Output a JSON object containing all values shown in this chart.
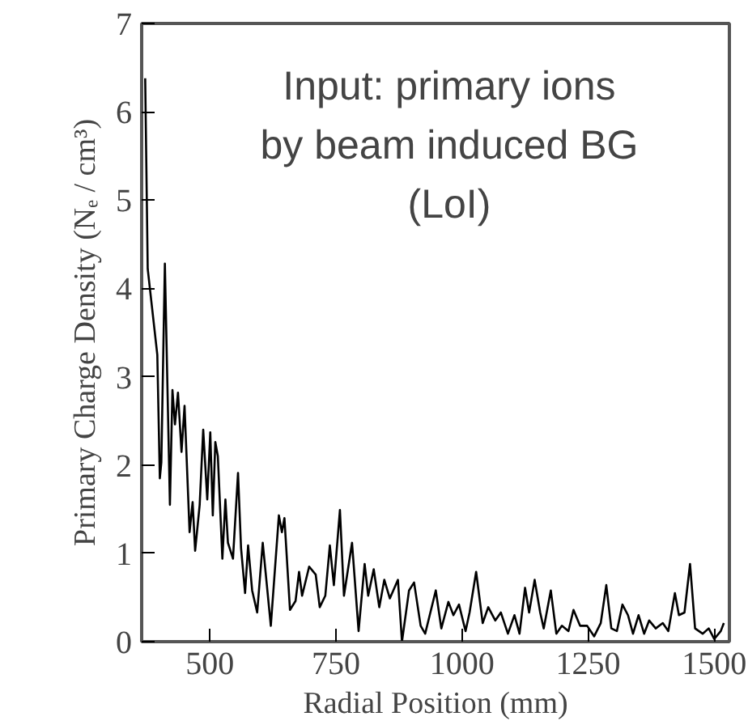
{
  "chart_data": {
    "type": "line",
    "xlabel": "Radial Position (mm)",
    "ylabel": "Primary Charge Density (Nₑ / cm³)",
    "annotations": [
      "Input: primary ions\nby beam induced BG\n(LoI)"
    ],
    "xlim": [
      365,
      1530
    ],
    "xticks": [
      500,
      750,
      1000,
      1250,
      1500
    ],
    "ylim": [
      0,
      7
    ],
    "yticks": [
      0,
      1,
      2,
      3,
      4,
      5,
      6,
      7
    ],
    "grid": false,
    "marker": "none",
    "line_style": "solid",
    "series": [
      {
        "color": "#000000",
        "x": [
          372,
          377,
          396,
          401,
          404,
          411,
          421,
          426,
          431,
          437,
          444,
          450,
          460,
          466,
          471,
          480,
          487,
          495,
          501,
          506,
          511,
          516,
          525,
          531,
          536,
          546,
          556,
          562,
          570,
          576,
          584,
          594,
          605,
          621,
          637,
          643,
          648,
          659,
          670,
          677,
          683,
          697,
          710,
          718,
          729,
          738,
          746,
          758,
          766,
          782,
          795,
          807,
          814,
          825,
          836,
          846,
          857,
          873,
          881,
          895,
          905,
          918,
          927,
          948,
          959,
          973,
          983,
          994,
          1007,
          1015,
          1028,
          1041,
          1052,
          1066,
          1077,
          1091,
          1104,
          1114,
          1125,
          1133,
          1144,
          1155,
          1162,
          1176,
          1187,
          1198,
          1211,
          1221,
          1234,
          1248,
          1262,
          1275,
          1286,
          1296,
          1307,
          1318,
          1329,
          1339,
          1350,
          1361,
          1371,
          1384,
          1398,
          1409,
          1422,
          1430,
          1441,
          1452,
          1462,
          1477,
          1489,
          1500,
          1513,
          1519
        ],
        "values": [
          6.38,
          4.22,
          3.25,
          1.85,
          2.03,
          4.28,
          1.55,
          2.85,
          2.46,
          2.82,
          2.15,
          2.67,
          1.24,
          1.58,
          1.03,
          1.55,
          2.4,
          1.61,
          2.37,
          1.43,
          2.26,
          2.1,
          0.94,
          1.61,
          1.12,
          0.94,
          1.91,
          1.06,
          0.55,
          1.09,
          0.58,
          0.33,
          1.12,
          0.18,
          1.43,
          1.24,
          1.4,
          0.36,
          0.46,
          0.79,
          0.52,
          0.85,
          0.76,
          0.39,
          0.52,
          1.09,
          0.64,
          1.49,
          0.52,
          1.12,
          0.12,
          0.88,
          0.52,
          0.82,
          0.39,
          0.7,
          0.49,
          0.7,
          0.0,
          0.58,
          0.67,
          0.18,
          0.09,
          0.58,
          0.15,
          0.45,
          0.3,
          0.42,
          0.12,
          0.33,
          0.79,
          0.21,
          0.39,
          0.24,
          0.33,
          0.09,
          0.3,
          0.09,
          0.61,
          0.33,
          0.7,
          0.33,
          0.15,
          0.58,
          0.09,
          0.18,
          0.12,
          0.36,
          0.18,
          0.18,
          0.06,
          0.21,
          0.64,
          0.15,
          0.12,
          0.42,
          0.3,
          0.09,
          0.3,
          0.09,
          0.24,
          0.15,
          0.21,
          0.12,
          0.55,
          0.3,
          0.33,
          0.88,
          0.15,
          0.09,
          0.15,
          0.03,
          0.12,
          0.21
        ]
      }
    ]
  }
}
